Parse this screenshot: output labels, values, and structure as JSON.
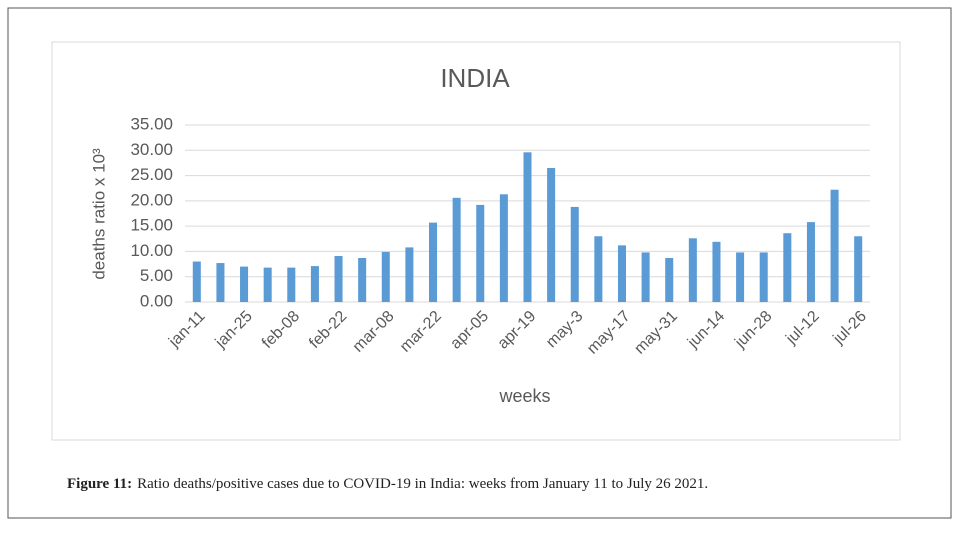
{
  "chart_data": {
    "type": "bar",
    "title": "INDIA",
    "x_label": "weeks",
    "y_label": "deaths ratio x 10³",
    "categories": [
      "jan-11",
      null,
      "jan-25",
      null,
      "feb-08",
      null,
      "feb-22",
      null,
      "mar-08",
      null,
      "mar-22",
      null,
      "apr-05",
      null,
      "apr-19",
      null,
      "may-3",
      null,
      "may-17",
      null,
      "may-31",
      null,
      "jun-14",
      null,
      "jun-28",
      null,
      "jul-12",
      null,
      "jul-26"
    ],
    "values": [
      8.0,
      7.7,
      7.0,
      6.8,
      6.8,
      7.1,
      9.1,
      8.7,
      9.9,
      10.8,
      15.7,
      20.6,
      19.2,
      21.3,
      29.6,
      26.5,
      18.8,
      13.0,
      11.2,
      9.8,
      8.7,
      12.6,
      11.9,
      9.8,
      9.8,
      13.6,
      15.8,
      22.2,
      13.0
    ],
    "color": "#5b9bd5",
    "ylim": [
      0,
      35
    ],
    "yticks": [
      {
        "value": 0,
        "label": "0.00"
      },
      {
        "value": 5,
        "label": "5.00"
      },
      {
        "value": 10,
        "label": "10.00"
      },
      {
        "value": 15,
        "label": "15.00"
      },
      {
        "value": 20,
        "label": "20.00"
      },
      {
        "value": 25,
        "label": "25.00"
      },
      {
        "value": 30,
        "label": "30.00"
      },
      {
        "value": 35,
        "label": "35.00"
      }
    ],
    "grid": true
  },
  "caption": {
    "label": "Figure 11:",
    "text": "Ratio deaths/positive cases due to COVID-19 in India: weeks from January 11 to July 26 2021."
  }
}
